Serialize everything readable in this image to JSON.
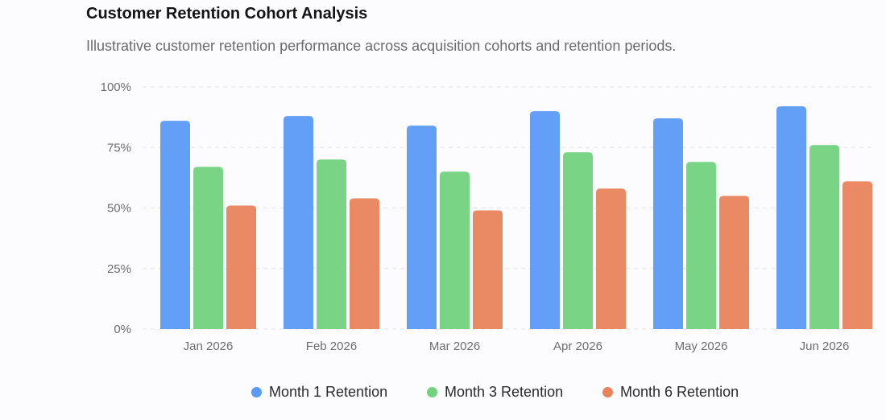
{
  "header": {
    "title": "Customer Retention Cohort Analysis",
    "subtitle": "Illustrative customer retention performance across acquisition cohorts and retention periods."
  },
  "chart_data": {
    "type": "bar",
    "categories": [
      "Jan 2026",
      "Feb 2026",
      "Mar 2026",
      "Apr 2026",
      "May 2026",
      "Jun 2026"
    ],
    "series": [
      {
        "name": "Month 1 Retention",
        "color": "#5b9af5",
        "values": [
          86,
          88,
          84,
          90,
          87,
          92
        ]
      },
      {
        "name": "Month 3 Retention",
        "color": "#72d27f",
        "values": [
          67,
          70,
          65,
          73,
          69,
          76
        ]
      },
      {
        "name": "Month 6 Retention",
        "color": "#e8845c",
        "values": [
          51,
          54,
          49,
          58,
          55,
          61
        ]
      }
    ],
    "ylim": [
      0,
      100
    ],
    "yticks": [
      0,
      25,
      50,
      75,
      100
    ],
    "ytick_labels": [
      "0%",
      "25%",
      "50%",
      "75%",
      "100%"
    ],
    "grid": true,
    "legend_position": "bottom-center"
  }
}
